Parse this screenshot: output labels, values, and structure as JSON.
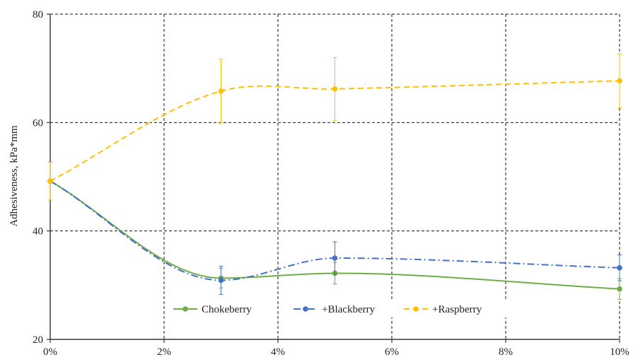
{
  "chart_data": {
    "type": "line",
    "title": "",
    "xlabel": "",
    "ylabel": "Adhesiveness, kPa*mm",
    "x": [
      0,
      3,
      5,
      10
    ],
    "x_ticks": [
      0,
      2,
      4,
      6,
      8,
      10
    ],
    "x_tick_labels": [
      "0%",
      "2%",
      "4%",
      "6%",
      "8%",
      "10%"
    ],
    "xlim": [
      0,
      10
    ],
    "ylim": [
      20,
      80
    ],
    "y_ticks": [
      20,
      40,
      60,
      80
    ],
    "y_tick_labels": [
      "20",
      "40",
      "60",
      "80"
    ],
    "grid": true,
    "legend_position": "bottom-center",
    "series": [
      {
        "name": "Chokeberry",
        "color": "#70ad47",
        "dash": "solid",
        "values": [
          49.2,
          31.3,
          32.2,
          29.3
        ],
        "errors": [
          3.5,
          1.8,
          2.0,
          1.9
        ]
      },
      {
        "name": "+Blackberry",
        "color": "#4472c4",
        "dash": "dashdot",
        "values": [
          49.2,
          30.9,
          35.0,
          33.2
        ],
        "errors": [
          3.5,
          2.6,
          3.0,
          2.4
        ]
      },
      {
        "name": "+Raspberry",
        "color": "#ffc000",
        "dash": "dashed",
        "values": [
          49.2,
          65.8,
          66.2,
          67.7
        ],
        "errors": [
          3.5,
          5.9,
          5.8,
          5.0
        ]
      }
    ]
  }
}
